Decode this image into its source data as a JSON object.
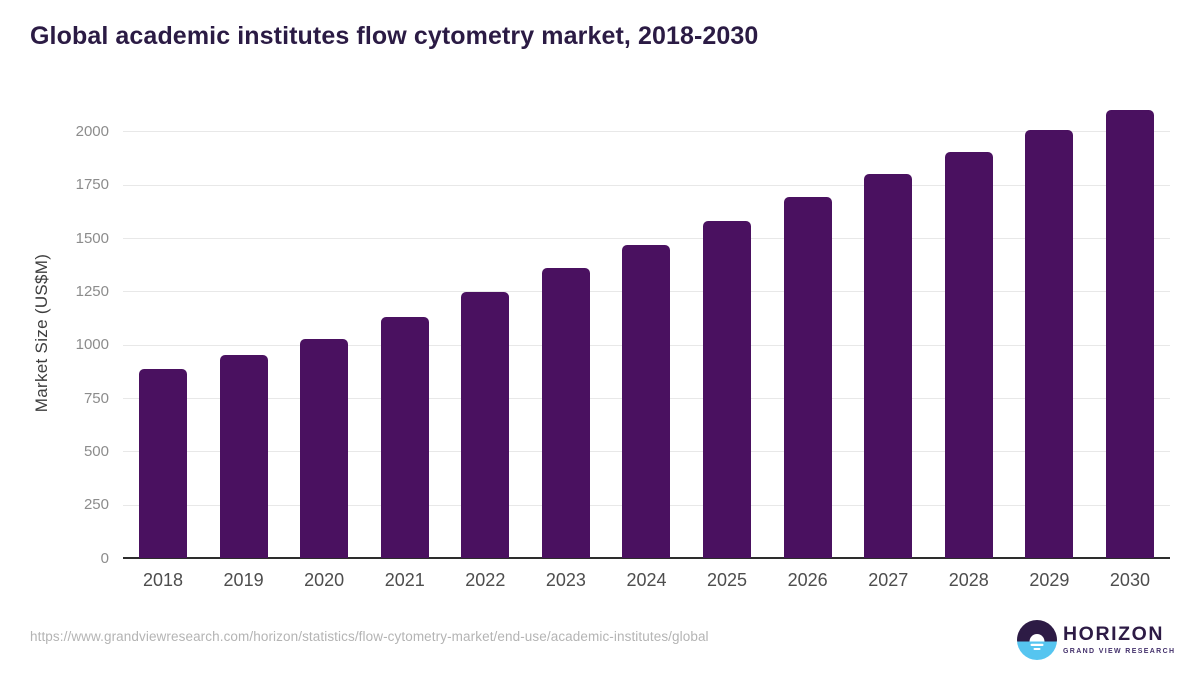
{
  "title": "Global academic institutes flow cytometry market, 2018-2030",
  "chart_data": {
    "type": "bar",
    "title": "Global academic institutes flow cytometry market, 2018-2030",
    "categories": [
      "2018",
      "2019",
      "2020",
      "2021",
      "2022",
      "2023",
      "2024",
      "2025",
      "2026",
      "2027",
      "2028",
      "2029",
      "2030"
    ],
    "values": [
      885,
      950,
      1025,
      1130,
      1245,
      1360,
      1470,
      1580,
      1695,
      1800,
      1905,
      2005,
      2100
    ],
    "xlabel": "",
    "ylabel": "Market Size (US$M)",
    "yticks": [
      0,
      250,
      500,
      750,
      1000,
      1250,
      1500,
      1750,
      2000
    ],
    "ylim": [
      0,
      2110
    ],
    "grid": true,
    "legend": "none",
    "bar_color": "#4a1160"
  },
  "colors": {
    "bar": "#4a1160",
    "title_text": "#2b1b44",
    "gridline": "#e8e8e8",
    "axis_line": "#2d2d2d",
    "logo_purple": "#2d1b45",
    "logo_blue": "#56c5f0"
  },
  "footer": {
    "source_url": "https://www.grandviewresearch.com/horizon/statistics/flow-cytometry-market/end-use/academic-institutes/global",
    "logo": {
      "name": "HORIZON",
      "subtitle": "GRAND VIEW RESEARCH"
    }
  }
}
